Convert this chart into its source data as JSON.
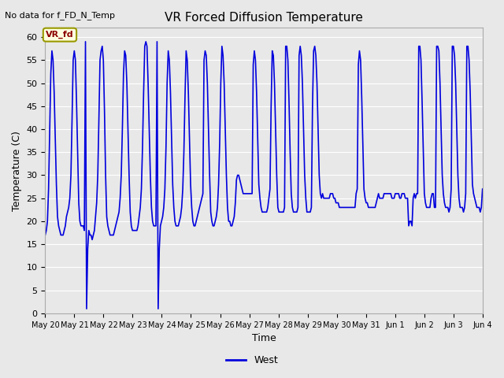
{
  "title": "VR Forced Diffusion Temperature",
  "xlabel": "Time",
  "ylabel": "Temperature (C)",
  "top_left_text": "No data for f_FD_N_Temp",
  "annotation_label": "VR_fd",
  "legend_label": "West",
  "ylim": [
    0,
    62
  ],
  "yticks": [
    0,
    5,
    10,
    15,
    20,
    25,
    30,
    35,
    40,
    45,
    50,
    55,
    60
  ],
  "line_color": "#0000dd",
  "legend_line_color": "#0000dd",
  "background_color": "#e8e8e8",
  "plot_bg_color": "#e8e8e8",
  "xtick_labels": [
    "May 20",
    "May 21",
    "May 22",
    "May 23",
    "May 24",
    "May 25",
    "May 26",
    "May 27",
    "May 28",
    "May 29",
    "May 30",
    "May 31",
    "Jun 1",
    "Jun 2",
    "Jun 3",
    "Jun 4"
  ],
  "time_series": [
    17,
    18,
    20,
    27,
    40,
    52,
    57,
    55,
    48,
    38,
    28,
    21,
    19,
    18,
    17,
    17,
    17,
    18,
    19,
    21,
    22,
    23,
    25,
    30,
    42,
    55,
    57,
    55,
    46,
    35,
    24,
    20,
    19,
    19,
    19,
    18,
    59,
    1,
    14,
    18,
    17,
    17,
    16,
    17,
    18,
    21,
    24,
    30,
    42,
    55,
    57,
    58,
    55,
    44,
    30,
    21,
    19,
    18,
    17,
    17,
    17,
    17,
    18,
    19,
    20,
    21,
    22,
    25,
    30,
    40,
    52,
    57,
    56,
    50,
    40,
    30,
    22,
    19,
    18,
    18,
    18,
    18,
    18,
    19,
    21,
    23,
    27,
    36,
    48,
    58,
    59,
    58,
    50,
    40,
    30,
    23,
    20,
    19,
    19,
    19,
    59,
    1,
    14,
    19,
    20,
    21,
    23,
    27,
    36,
    50,
    57,
    55,
    48,
    38,
    28,
    23,
    20,
    19,
    19,
    19,
    20,
    21,
    23,
    27,
    35,
    47,
    57,
    55,
    48,
    38,
    28,
    23,
    20,
    19,
    19,
    20,
    21,
    22,
    23,
    24,
    25,
    26,
    55,
    57,
    56,
    50,
    40,
    30,
    22,
    20,
    19,
    19,
    20,
    21,
    23,
    28,
    37,
    50,
    58,
    56,
    50,
    40,
    30,
    23,
    20,
    20,
    19,
    19,
    20,
    21,
    24,
    29,
    30,
    30,
    29,
    28,
    27,
    26,
    26,
    26,
    26,
    26,
    26,
    26,
    26,
    26,
    54,
    57,
    55,
    48,
    38,
    28,
    25,
    23,
    22,
    22,
    22,
    22,
    22,
    23,
    25,
    27,
    45,
    57,
    56,
    50,
    40,
    30,
    23,
    22,
    22,
    22,
    22,
    22,
    23,
    58,
    58,
    55,
    46,
    35,
    26,
    23,
    22,
    22,
    22,
    22,
    23,
    56,
    58,
    56,
    50,
    40,
    30,
    25,
    22,
    22,
    22,
    22,
    23,
    45,
    57,
    58,
    56,
    50,
    40,
    30,
    26,
    25,
    26,
    25,
    25,
    25,
    25,
    25,
    25,
    26,
    26,
    26,
    25,
    25,
    24,
    24,
    24,
    23,
    23,
    23,
    23,
    23,
    23,
    23,
    23,
    23,
    23,
    23,
    23,
    23,
    23,
    23,
    26,
    27,
    54,
    57,
    55,
    47,
    37,
    27,
    25,
    24,
    24,
    23,
    23,
    23,
    23,
    23,
    23,
    23,
    24,
    25,
    26,
    25,
    25,
    25,
    25,
    26,
    26,
    26,
    26,
    26,
    26,
    26,
    25,
    25,
    25,
    26,
    26,
    26,
    26,
    25,
    25,
    26,
    26,
    26,
    25,
    25,
    25,
    19,
    20,
    20,
    19,
    25,
    26,
    25,
    26,
    26,
    58,
    58,
    55,
    46,
    36,
    26,
    24,
    23,
    23,
    23,
    23,
    25,
    26,
    26,
    23,
    23,
    58,
    58,
    57,
    50,
    40,
    30,
    26,
    24,
    23,
    23,
    23,
    22,
    23,
    27,
    58,
    58,
    56,
    50,
    40,
    30,
    25,
    23,
    23,
    23,
    22,
    23,
    26,
    58,
    58,
    55,
    48,
    38,
    28,
    26,
    25,
    24,
    23,
    23,
    23,
    22,
    23,
    27
  ]
}
